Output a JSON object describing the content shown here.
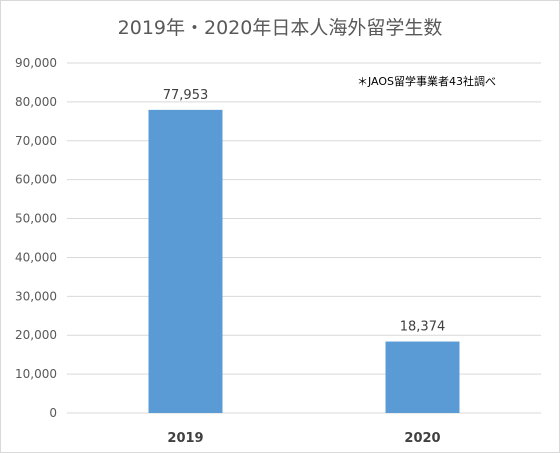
{
  "chart_data": {
    "type": "bar",
    "title": "2019年・2020年日本人海外留学生数",
    "note": "＊JAOS留学事業者43社調べ",
    "categories": [
      "2019",
      "2020"
    ],
    "values": [
      77953,
      18374
    ],
    "value_labels": [
      "77,953",
      "18,374"
    ],
    "ylim": [
      0,
      90000
    ],
    "ytick_values": [
      0,
      10000,
      20000,
      30000,
      40000,
      50000,
      60000,
      70000,
      80000,
      90000
    ],
    "ytick_labels": [
      "0",
      "10,000",
      "20,000",
      "30,000",
      "40,000",
      "50,000",
      "60,000",
      "70,000",
      "80,000",
      "90,000"
    ],
    "grid": true,
    "legend": "none",
    "bar_color": "#5b9bd5",
    "grid_color": "#d9d9d9"
  }
}
